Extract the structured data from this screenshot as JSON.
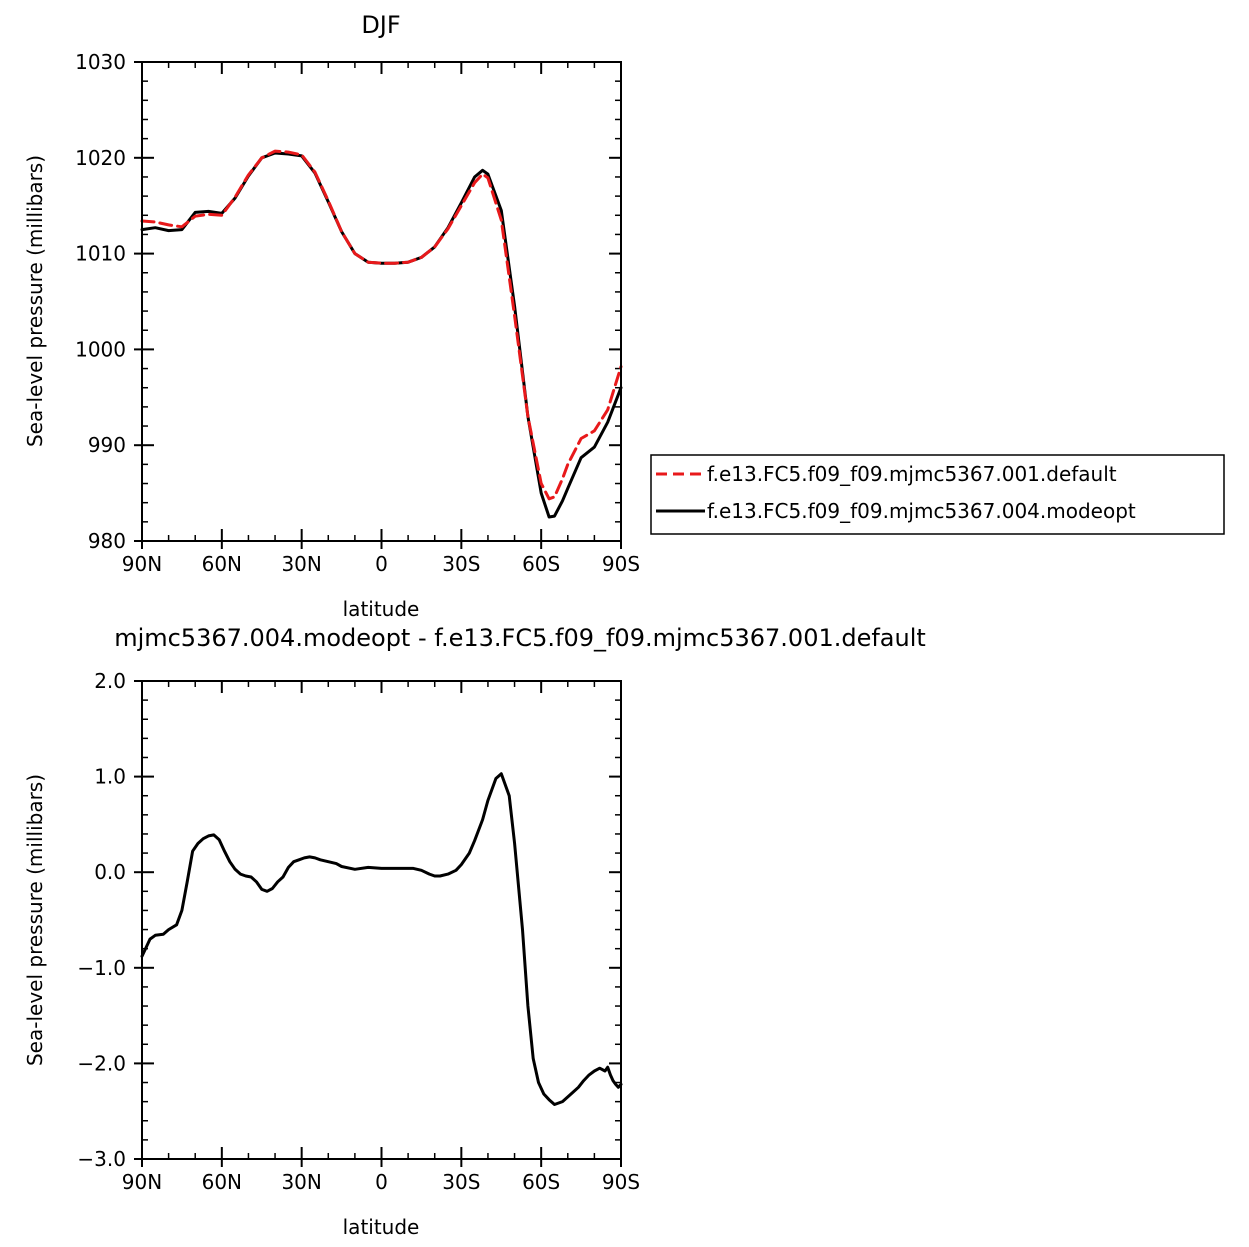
{
  "chart_data": [
    {
      "type": "line",
      "title": "DJF",
      "xlabel": "latitude",
      "ylabel": "Sea-level pressure (millibars)",
      "xlim": [
        90,
        -90
      ],
      "ylim": [
        980,
        1030
      ],
      "xticks": [
        90,
        60,
        30,
        0,
        -30,
        -60,
        -90
      ],
      "xtick_labels": [
        "90N",
        "60N",
        "30N",
        "0",
        "30S",
        "60S",
        "90S"
      ],
      "yticks": [
        980,
        990,
        1000,
        1010,
        1020,
        1030
      ],
      "ytick_labels": [
        "980",
        "990",
        "1000",
        "1010",
        "1020",
        "1030"
      ],
      "legend_position": "right",
      "series": [
        {
          "name": "f.e13.FC5.f09_f09.mjmc5367.001.default",
          "color": "#e8191b",
          "style": "dashed",
          "x": [
            90,
            85,
            80,
            75,
            70,
            65,
            60,
            55,
            50,
            45,
            40,
            35,
            30,
            25,
            20,
            15,
            10,
            5,
            0,
            -5,
            -10,
            -15,
            -20,
            -25,
            -30,
            -35,
            -38,
            -40,
            -45,
            -50,
            -55,
            -60,
            -63,
            -65,
            -68,
            -70,
            -75,
            -80,
            -85,
            -90
          ],
          "y": [
            1013.4,
            1013.3,
            1013.0,
            1012.8,
            1013.9,
            1014.1,
            1014.0,
            1015.9,
            1018.2,
            1020.0,
            1020.7,
            1020.6,
            1020.3,
            1018.5,
            1015.5,
            1012.3,
            1010.0,
            1009.1,
            1009.0,
            1009.0,
            1009.1,
            1009.6,
            1010.7,
            1012.6,
            1015.0,
            1017.4,
            1018.3,
            1017.9,
            1013.5,
            1003.5,
            993.0,
            986.0,
            984.4,
            984.6,
            986.5,
            988.0,
            990.7,
            991.5,
            993.7,
            998.2
          ]
        },
        {
          "name": "f.e13.FC5.f09_f09.mjmc5367.004.modeopt",
          "color": "#000000",
          "style": "solid",
          "x": [
            90,
            85,
            80,
            75,
            70,
            65,
            60,
            55,
            50,
            45,
            40,
            35,
            30,
            25,
            20,
            15,
            10,
            5,
            0,
            -5,
            -10,
            -15,
            -20,
            -25,
            -30,
            -35,
            -38,
            -40,
            -45,
            -50,
            -55,
            -60,
            -63,
            -65,
            -68,
            -70,
            -75,
            -80,
            -85,
            -90
          ],
          "y": [
            1012.5,
            1012.7,
            1012.4,
            1012.5,
            1014.3,
            1014.4,
            1014.2,
            1015.8,
            1018.1,
            1020.0,
            1020.5,
            1020.4,
            1020.2,
            1018.4,
            1015.4,
            1012.3,
            1010.0,
            1009.1,
            1009.0,
            1009.0,
            1009.1,
            1009.6,
            1010.7,
            1012.7,
            1015.3,
            1018.0,
            1018.7,
            1018.3,
            1014.5,
            1004.5,
            993.0,
            985.0,
            982.5,
            982.6,
            984.2,
            985.5,
            988.7,
            989.8,
            992.4,
            996.0
          ]
        }
      ]
    },
    {
      "type": "line",
      "title": "mjmc5367.004.modeopt - f.e13.FC5.f09_f09.mjmc5367.001.default",
      "xlabel": "latitude",
      "ylabel": "Sea-level pressure (millibars)",
      "xlim": [
        90,
        -90
      ],
      "ylim": [
        -3.0,
        2.0
      ],
      "xticks": [
        90,
        60,
        30,
        0,
        -30,
        -60,
        -90
      ],
      "xtick_labels": [
        "90N",
        "60N",
        "30N",
        "0",
        "30S",
        "60S",
        "90S"
      ],
      "yticks": [
        -3.0,
        -2.0,
        -1.0,
        0.0,
        1.0,
        2.0
      ],
      "ytick_labels": [
        "−3.0",
        "−2.0",
        "−1.0",
        "0.0",
        "1.0",
        "2.0"
      ],
      "series": [
        {
          "color": "#000000",
          "style": "solid",
          "x": [
            90,
            87,
            85,
            82,
            80,
            77,
            75,
            73,
            71,
            69,
            67,
            65,
            63,
            61,
            59,
            57,
            55,
            53,
            51,
            49,
            47,
            45,
            43,
            41,
            39,
            37,
            35,
            33,
            31,
            29,
            27,
            25,
            23,
            20,
            17,
            15,
            10,
            5,
            0,
            -5,
            -10,
            -12,
            -15,
            -18,
            -20,
            -22,
            -25,
            -28,
            -30,
            -33,
            -35,
            -38,
            -40,
            -43,
            -45,
            -48,
            -50,
            -53,
            -55,
            -57,
            -59,
            -61,
            -63,
            -65,
            -68,
            -70,
            -72,
            -74,
            -76,
            -78,
            -80,
            -82,
            -84,
            -85,
            -86,
            -87,
            -88,
            -89,
            -90
          ],
          "y": [
            -0.88,
            -0.7,
            -0.66,
            -0.65,
            -0.6,
            -0.55,
            -0.4,
            -0.1,
            0.22,
            0.3,
            0.35,
            0.38,
            0.39,
            0.34,
            0.22,
            0.11,
            0.03,
            -0.02,
            -0.04,
            -0.05,
            -0.1,
            -0.18,
            -0.2,
            -0.17,
            -0.1,
            -0.05,
            0.05,
            0.11,
            0.13,
            0.15,
            0.16,
            0.15,
            0.13,
            0.11,
            0.09,
            0.06,
            0.03,
            0.05,
            0.04,
            0.04,
            0.04,
            0.04,
            0.02,
            -0.02,
            -0.04,
            -0.04,
            -0.02,
            0.02,
            0.08,
            0.2,
            0.33,
            0.55,
            0.75,
            0.98,
            1.03,
            0.8,
            0.3,
            -0.6,
            -1.4,
            -1.95,
            -2.2,
            -2.32,
            -2.38,
            -2.43,
            -2.4,
            -2.35,
            -2.3,
            -2.25,
            -2.18,
            -2.12,
            -2.08,
            -2.05,
            -2.08,
            -2.04,
            -2.12,
            -2.18,
            -2.22,
            -2.25,
            -2.22
          ]
        }
      ]
    }
  ]
}
